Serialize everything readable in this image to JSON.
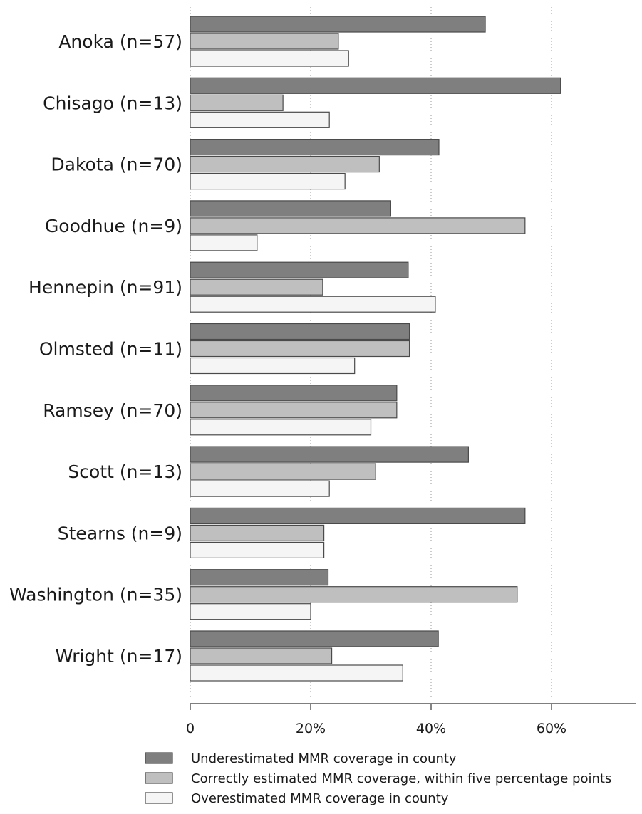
{
  "chart_data": {
    "type": "bar",
    "orientation": "horizontal",
    "categories": [
      "Anoka (n=57)",
      "Chisago (n=13)",
      "Dakota (n=70)",
      "Goodhue (n=9)",
      "Hennepin (n=91)",
      "Olmsted (n=11)",
      "Ramsey (n=70)",
      "Scott (n=13)",
      "Stearns (n=9)",
      "Washington (n=35)",
      "Wright (n=17)"
    ],
    "series": [
      {
        "name": "Underestimated MMR coverage in county",
        "color": "#7f7f7f",
        "values": [
          49,
          61.5,
          41.3,
          33.3,
          36.2,
          36.4,
          34.3,
          46.2,
          55.6,
          22.9,
          41.2
        ]
      },
      {
        "name": "Correctly estimated MMR coverage, within five percentage points",
        "color": "#bfbfbf",
        "values": [
          24.6,
          15.4,
          31.4,
          55.6,
          22,
          36.4,
          34.3,
          30.8,
          22.2,
          54.3,
          23.5
        ]
      },
      {
        "name": "Overestimated MMR coverage in county",
        "color": "#f5f5f5",
        "values": [
          26.3,
          23.1,
          25.7,
          11.1,
          40.7,
          27.3,
          30,
          23.1,
          22.2,
          20,
          35.3
        ]
      }
    ],
    "xlim": [
      0,
      75
    ],
    "xticks": [
      0,
      20,
      40,
      60
    ],
    "xtick_labels": [
      "0",
      "20%",
      "40%",
      "60%"
    ],
    "grid": "vertical-dotted",
    "legend_position": "bottom",
    "xlabel": "",
    "ylabel": "",
    "title": ""
  }
}
